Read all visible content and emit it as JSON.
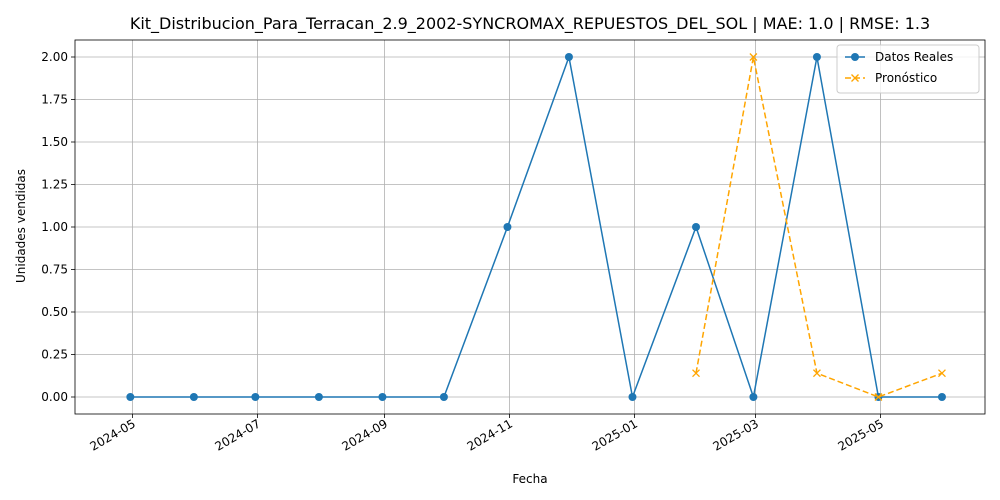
{
  "chart_data": {
    "type": "line",
    "title": "Kit_Distribucion_Para_Terracan_2.9_2002-SYNCROMAX_REPUESTOS_DEL_SOL | MAE: 1.0 | RMSE: 1.3",
    "xlabel": "Fecha",
    "ylabel": "Unidades vendidas",
    "x_ticks": [
      "2024-05-01",
      "2024-07-01",
      "2024-09-01",
      "2024-11-01",
      "2025-01-01",
      "2025-03-01",
      "2025-05-01"
    ],
    "x_tick_labels": [
      "2024-05",
      "2024-07",
      "2024-09",
      "2024-11",
      "2025-01",
      "2025-03",
      "2025-05"
    ],
    "xlim": [
      "2024-04-03",
      "2025-06-21"
    ],
    "ylim": [
      -0.1,
      2.1
    ],
    "y_ticks": [
      0.0,
      0.25,
      0.5,
      0.75,
      1.0,
      1.25,
      1.5,
      1.75,
      2.0
    ],
    "y_tick_labels": [
      "0.00",
      "0.25",
      "0.50",
      "0.75",
      "1.00",
      "1.25",
      "1.50",
      "1.75",
      "2.00"
    ],
    "grid": true,
    "legend_position": "top-right",
    "series": [
      {
        "name": "Datos Reales",
        "color": "#1f77b4",
        "style": "solid",
        "marker": "circle",
        "x": [
          "2024-04-30",
          "2024-05-31",
          "2024-06-30",
          "2024-07-31",
          "2024-08-31",
          "2024-09-30",
          "2024-10-31",
          "2024-11-30",
          "2024-12-31",
          "2025-01-31",
          "2025-02-28",
          "2025-03-31",
          "2025-04-30",
          "2025-05-31"
        ],
        "values": [
          0,
          0,
          0,
          0,
          0,
          0,
          1,
          2,
          0,
          1,
          0,
          2,
          0,
          0
        ]
      },
      {
        "name": "Pronóstico",
        "color": "#ffa500",
        "style": "dashed",
        "marker": "x",
        "x": [
          "2025-01-31",
          "2025-02-28",
          "2025-03-31",
          "2025-04-30",
          "2025-05-31"
        ],
        "values": [
          0.14,
          2.0,
          0.14,
          0.0,
          0.14
        ]
      }
    ]
  }
}
